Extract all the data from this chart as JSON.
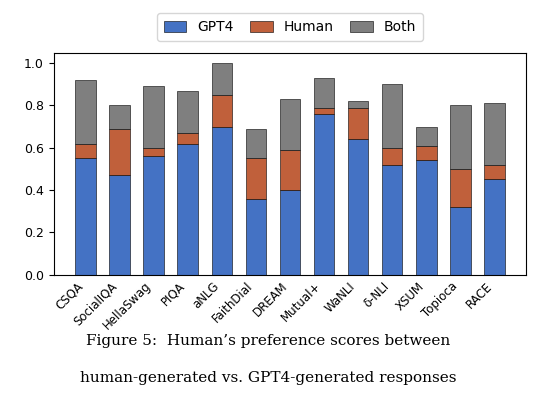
{
  "categories": [
    "CSQA",
    "SocialIQA",
    "HellaSwag",
    "PIQA",
    "aNLG",
    "FaithDial",
    "DREAM",
    "Mutual+",
    "WaNLI",
    "δ-NLI",
    "XSUM",
    "Topioca",
    "RACE"
  ],
  "gpt4": [
    0.55,
    0.47,
    0.56,
    0.62,
    0.7,
    0.36,
    0.4,
    0.76,
    0.64,
    0.52,
    0.54,
    0.32,
    0.45
  ],
  "human": [
    0.07,
    0.22,
    0.04,
    0.05,
    0.15,
    0.19,
    0.19,
    0.03,
    0.15,
    0.08,
    0.07,
    0.18,
    0.07
  ],
  "both": [
    0.3,
    0.11,
    0.29,
    0.2,
    0.15,
    0.14,
    0.24,
    0.14,
    0.03,
    0.3,
    0.09,
    0.3,
    0.29
  ],
  "gpt4_color": "#4472C4",
  "human_color": "#C0603B",
  "both_color": "#7F7F7F",
  "ylim": [
    0.0,
    1.05
  ],
  "yticks": [
    0.0,
    0.2,
    0.4,
    0.6,
    0.8,
    1.0
  ],
  "legend_labels": [
    "GPT4",
    "Human",
    "Both"
  ],
  "caption_line1": "Figure 5:  Human’s preference scores between",
  "caption_line2": "human-generated vs. GPT4-generated responses"
}
